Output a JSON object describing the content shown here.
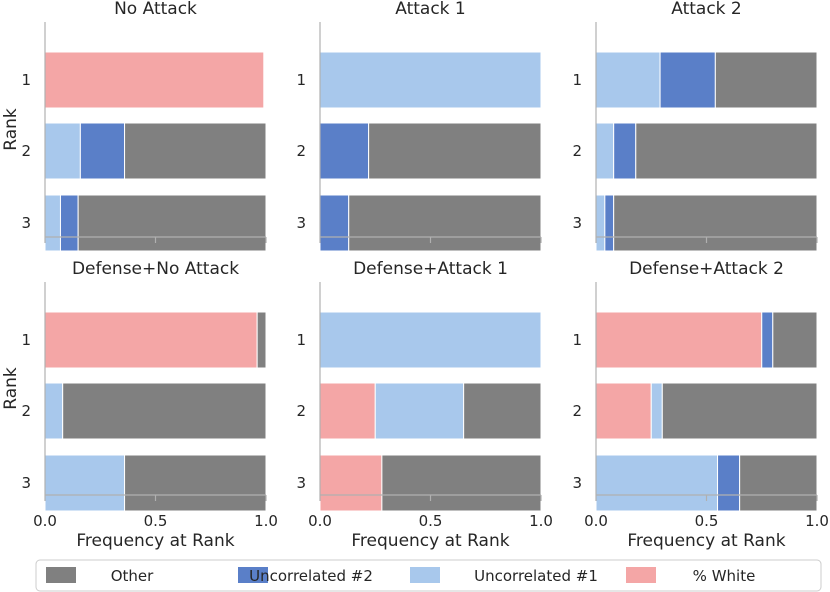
{
  "chart_data": {
    "type": "bar",
    "orientation": "horizontal-stacked",
    "segment_order": [
      "% White",
      "Uncorrelated #1",
      "Uncorrelated #2",
      "Other"
    ],
    "colors": {
      "% White": "#f4a6a6",
      "Uncorrelated #1": "#a8c8ec",
      "Uncorrelated #2": "#5a7fc8",
      "Other": "#808080"
    },
    "xlim": [
      0,
      1
    ],
    "xticks": [
      "0.0",
      "0.5",
      "1.0"
    ],
    "xlabel": "Frequency at Rank",
    "ylabel": "Rank",
    "ranks": [
      "1",
      "2",
      "3"
    ],
    "legend": {
      "position": "bottom",
      "entries": [
        "Other",
        "Uncorrelated #2",
        "Uncorrelated #1",
        "% White"
      ]
    },
    "panels": [
      {
        "title": "No Attack",
        "rows": [
          {
            "rank": "1",
            "values": [
              0.99,
              0,
              0,
              0
            ]
          },
          {
            "rank": "2",
            "values": [
              0,
              0.16,
              0.2,
              0.64
            ]
          },
          {
            "rank": "3",
            "values": [
              0,
              0.07,
              0.08,
              0.85
            ]
          }
        ]
      },
      {
        "title": "Attack 1",
        "rows": [
          {
            "rank": "1",
            "values": [
              0,
              1.0,
              0,
              0
            ]
          },
          {
            "rank": "2",
            "values": [
              0,
              0,
              0.22,
              0.78
            ]
          },
          {
            "rank": "3",
            "values": [
              0,
              0,
              0.13,
              0.87
            ]
          }
        ]
      },
      {
        "title": "Attack 2",
        "rows": [
          {
            "rank": "1",
            "values": [
              0,
              0.29,
              0.25,
              0.46
            ]
          },
          {
            "rank": "2",
            "values": [
              0,
              0.08,
              0.1,
              0.82
            ]
          },
          {
            "rank": "3",
            "values": [
              0,
              0.04,
              0.04,
              0.92
            ]
          }
        ]
      },
      {
        "title": "Defense+No Attack",
        "rows": [
          {
            "rank": "1",
            "values": [
              0.96,
              0,
              0,
              0.04
            ]
          },
          {
            "rank": "2",
            "values": [
              0,
              0.08,
              0,
              0.92
            ]
          },
          {
            "rank": "3",
            "values": [
              0,
              0.36,
              0,
              0.64
            ]
          }
        ]
      },
      {
        "title": "Defense+Attack 1",
        "rows": [
          {
            "rank": "1",
            "values": [
              0,
              1.0,
              0,
              0
            ]
          },
          {
            "rank": "2",
            "values": [
              0.25,
              0.4,
              0,
              0.35
            ]
          },
          {
            "rank": "3",
            "values": [
              0.28,
              0,
              0,
              0.72
            ]
          }
        ]
      },
      {
        "title": "Defense+Attack 2",
        "rows": [
          {
            "rank": "1",
            "values": [
              0.75,
              0,
              0.05,
              0.2
            ]
          },
          {
            "rank": "2",
            "values": [
              0.25,
              0.05,
              0,
              0.7
            ]
          },
          {
            "rank": "3",
            "values": [
              0,
              0.55,
              0.1,
              0.35
            ]
          }
        ]
      }
    ]
  }
}
